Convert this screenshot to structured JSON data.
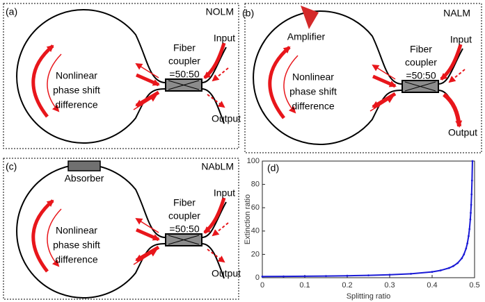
{
  "panels": [
    {
      "label": "(a)",
      "name": "NOLM",
      "loop_text": [
        "Nonlinear",
        "phase shift",
        "difference"
      ],
      "coupler_text": [
        "Fiber",
        "coupler",
        "=50:50"
      ],
      "input": "Input",
      "output": "Output"
    },
    {
      "label": "(b)",
      "name": "NALM",
      "loop_text": [
        "Nonlinear",
        "phase shift",
        "difference"
      ],
      "coupler_text": [
        "Fiber",
        "coupler",
        "=50:50"
      ],
      "input": "Input",
      "output": "Output",
      "component": "Amplifier"
    },
    {
      "label": "(c)",
      "name": "NAbLM",
      "loop_text": [
        "Nonlinear",
        "phase shift",
        "difference"
      ],
      "coupler_text": [
        "Fiber",
        "coupler",
        "=50:50"
      ],
      "input": "Input",
      "output": "Output",
      "component": "Absorber"
    }
  ],
  "chart_data": {
    "type": "line",
    "panel_label": "(d)",
    "x_label": "Splitting ratio",
    "y_label": "Extinction ratio",
    "x": [
      0,
      0.05,
      0.1,
      0.15,
      0.2,
      0.25,
      0.3,
      0.35,
      0.4,
      0.42,
      0.44,
      0.45,
      0.46,
      0.47,
      0.475,
      0.48,
      0.483,
      0.486,
      0.488,
      0.49,
      0.491,
      0.492,
      0.493,
      0.494,
      0.495
    ],
    "values": [
      1,
      1.11,
      1.25,
      1.43,
      1.67,
      2,
      2.5,
      3.33,
      5,
      6.25,
      8.33,
      10,
      12.5,
      16.67,
      20,
      25,
      29.41,
      35.71,
      41.67,
      50,
      55.56,
      62.5,
      71.43,
      83.33,
      100
    ],
    "color": "#1a1ad6",
    "xlim": [
      0,
      0.5
    ],
    "xticks": [
      0,
      0.1,
      0.2,
      0.3,
      0.4,
      0.5
    ],
    "ylim": [
      0,
      100
    ],
    "yticks": [
      0,
      20,
      40,
      60,
      80,
      100
    ],
    "grid": false
  }
}
